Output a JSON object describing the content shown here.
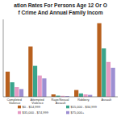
{
  "chart_data": {
    "type": "bar",
    "title": "ation Rates For Persons Age 12 Or O",
    "subtitle": "f Crime And Annual Family Incom",
    "categories": [
      "Completed Violence",
      "Attempted Violence",
      "Rape/Sexual Assault",
      "Robbery",
      "Assault"
    ],
    "series": [
      {
        "name": "$0 - $14,999",
        "color": "#b8601e",
        "values": [
          26,
          52,
          2.5,
          7,
          76
        ]
      },
      {
        "name": "$15,000 - $34,999",
        "color": "#3aa58c",
        "values": [
          15,
          32,
          1.2,
          3.5,
          50
        ]
      },
      {
        "name": "$35,000 - $74,999",
        "color": "#e59ac4",
        "values": [
          10,
          22,
          1,
          2.5,
          36
        ]
      },
      {
        "name": "$75,000+",
        "color": "#9d8fd2",
        "values": [
          8,
          19,
          0.8,
          2,
          30
        ]
      }
    ],
    "ylim": [
      0,
      80
    ],
    "tick_labels": "x",
    "legend": "bottom"
  }
}
